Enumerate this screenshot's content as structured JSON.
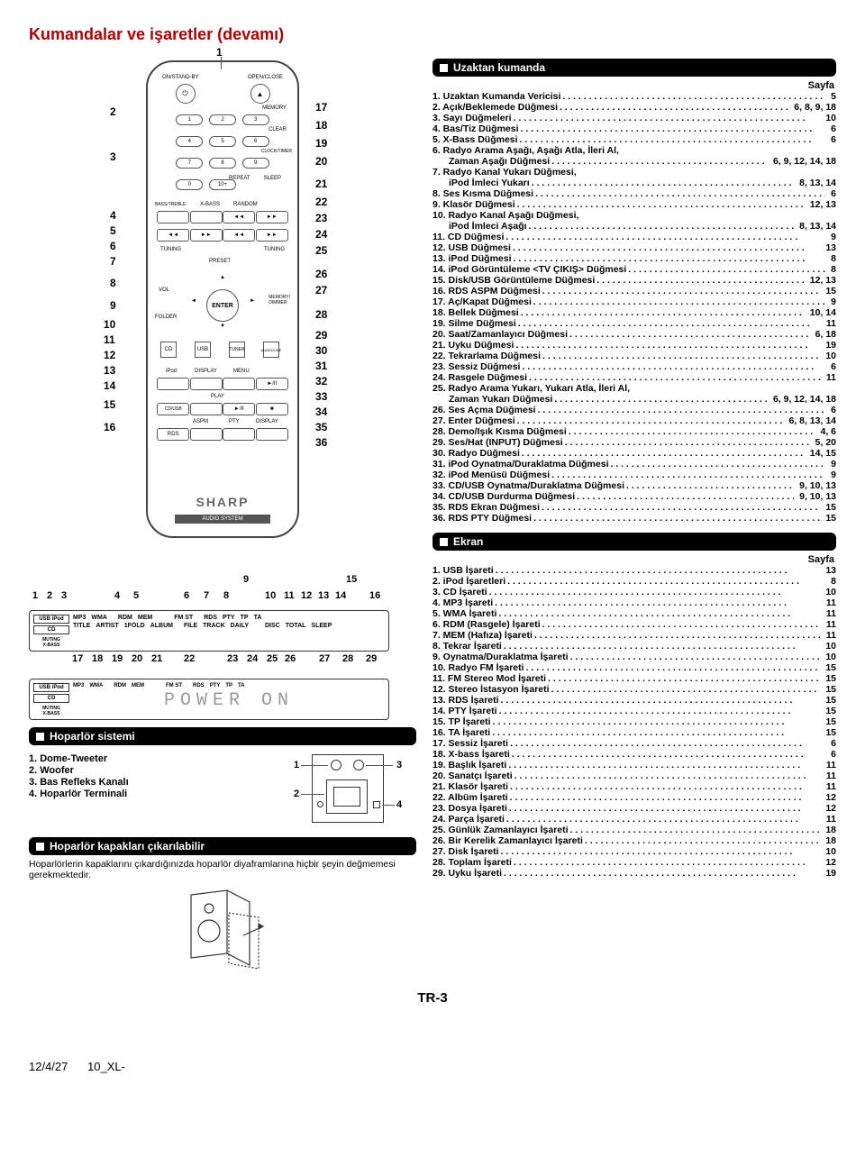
{
  "title": "Kumandalar ve işaretler (devamı)",
  "colors": {
    "title": "#b40000",
    "barBg": "#000000",
    "barFg": "#ffffff",
    "line": "#555555",
    "lcd": "#999999"
  },
  "remote": {
    "topNum": "1",
    "leftNums": [
      "2",
      "3",
      "4",
      "5",
      "6",
      "7",
      "8",
      "9",
      "10",
      "11",
      "12",
      "13",
      "14",
      "15",
      "16"
    ],
    "rightNums": [
      "17",
      "18",
      "19",
      "20",
      "21",
      "22",
      "23",
      "24",
      "25",
      "26",
      "27",
      "28",
      "29",
      "30",
      "31",
      "32",
      "33",
      "34",
      "35",
      "36"
    ],
    "labels": {
      "onStandby": "ON/STAND-BY",
      "openClose": "OPEN/CLOSE",
      "memory": "MEMORY",
      "clear": "CLEAR",
      "clockTimer": "CLOCK/TIMER",
      "repeat": "REPEAT",
      "sleep": "SLEEP",
      "bassTreble": "BASS/TREBLE",
      "xbass": "X-BASS",
      "random": "RANDOM",
      "tuningL": "TUNING",
      "tuningR": "TUNING",
      "preset": "PRESET",
      "vol": "VOL",
      "folder": "FOLDER",
      "enter": "ENTER",
      "memDim": "MEMORY/\nDIMMER",
      "cd": "CD",
      "usb": "USB",
      "tuner": "TUNER",
      "audioLine": "AUDIO/LINE",
      "ipod": "iPod",
      "display": "DISPLAY",
      "menu": "MENU",
      "cdusb": "CD/USB",
      "play": "PLAY",
      "aspm": "ASPM",
      "pty": "PTY",
      "displayB": "DISPLAY",
      "rds": "RDS",
      "brand": "SHARP",
      "audioSystem": "AUDIO SYSTEM",
      "numBtns": [
        "1",
        "2",
        "3",
        "4",
        "5",
        "6",
        "7",
        "8",
        "9",
        "0",
        "10+"
      ],
      "navUp": "▲",
      "navDn": "▼",
      "navL": "◄",
      "navR": "►"
    }
  },
  "displayTop": {
    "topLabels": {
      "n9": "9",
      "n15": "15"
    },
    "rowNums": [
      "1",
      "2",
      "3",
      "4",
      "5",
      "6",
      "7",
      "8",
      "10",
      "11",
      "12",
      "13",
      "14",
      "16"
    ],
    "leftBoxTop": "USB",
    "leftBoxTop2": "iPod",
    "leftBoxMid": "CD",
    "leftBoxBot1": "MUTING",
    "leftBoxBot2": "X-BASS",
    "labelsRow1": [
      "MP3",
      "WMA",
      "",
      "RDM",
      "MEM",
      "",
      "",
      "",
      "FM ST",
      "",
      "RDS",
      "PTY",
      "TP",
      "TA"
    ],
    "labelsRow2": [
      "TITLE",
      "ARTIST",
      "1FOLD",
      "ALBUM",
      "",
      "FILE",
      "TRACK",
      "DAILY",
      "",
      "",
      "DISC",
      "TOTAL",
      "SLEEP"
    ],
    "bottomRowNums": [
      "17",
      "18",
      "19",
      "20",
      "21",
      "22",
      "23",
      "24",
      "25",
      "26",
      "27",
      "28",
      "29"
    ]
  },
  "displayBottom": {
    "leftBoxTop": "USB",
    "leftBoxTop2": "iPod",
    "leftBoxMid": "CD",
    "leftBoxBot1": "MUTING",
    "leftBoxBot2": "X-BASS",
    "labelsRow1": [
      "MP3",
      "WMA",
      "",
      "RDM",
      "MEM",
      "",
      "",
      "",
      "FM ST",
      "",
      "RDS",
      "PTY",
      "TP",
      "TA"
    ],
    "labelsRow2": [
      "TITLE",
      "ARTIST",
      "1FOLD",
      "ALBUM",
      "",
      "FILE",
      "TRACK",
      "DAILY",
      "",
      "",
      "DISC",
      "TOTAL",
      "SLEEP"
    ],
    "lcd": "POWER ON"
  },
  "speakerSection": {
    "title": "Hoparlör sistemi",
    "items": [
      "1. Dome-Tweeter",
      "2. Woofer",
      "3. Bas Refleks Kanalı",
      "4. Hoparlör Terminali"
    ],
    "calloutNums": [
      "1",
      "2",
      "3",
      "4"
    ]
  },
  "coversSection": {
    "title": "Hoparlör kapakları çıkarılabilir",
    "note": "Hoparlörlerin kapaklarını çıkardığınızda hoparlör diyaframlarına hiçbir şeyin değmemesi gerekmektedir."
  },
  "remoteSection": {
    "title": "Uzaktan kumanda",
    "pageLabel": "Sayfa",
    "items": [
      {
        "n": "1.",
        "t": "Uzaktan Kumanda Vericisi",
        "p": "5"
      },
      {
        "n": "2.",
        "t": "Açık/Beklemede Düğmesi",
        "p": "6, 8, 9, 18"
      },
      {
        "n": "3.",
        "t": "Sayı Düğmeleri",
        "p": "10"
      },
      {
        "n": "4.",
        "t": "Bas/Tiz Düğmesi",
        "p": "6"
      },
      {
        "n": "5.",
        "t": "X-Bass Düğmesi",
        "p": "6"
      },
      {
        "n": "6.",
        "t": "Radyo Arama Aşağı, Aşağı Atla, İleri Al,",
        "p": ""
      },
      {
        "n": "",
        "t": "Zaman Aşağı Düğmesi",
        "p": "6, 9, 12, 14, 18",
        "sub": true
      },
      {
        "n": "7.",
        "t": "Radyo Kanal Yukarı Düğmesi,",
        "p": ""
      },
      {
        "n": "",
        "t": "iPod İmleci Yukarı",
        "p": "8, 13, 14",
        "sub": true
      },
      {
        "n": "8.",
        "t": "Ses Kısma Düğmesi",
        "p": "6"
      },
      {
        "n": "9.",
        "t": "Klasör Düğmesi",
        "p": "12, 13"
      },
      {
        "n": "10.",
        "t": "Radyo Kanal Aşağı Düğmesi,",
        "p": ""
      },
      {
        "n": "",
        "t": "iPod İmleci Aşağı",
        "p": "8, 13, 14",
        "sub": true
      },
      {
        "n": "11.",
        "t": "CD Düğmesi",
        "p": "9"
      },
      {
        "n": "12.",
        "t": "USB Düğmesi",
        "p": "13"
      },
      {
        "n": "13.",
        "t": "iPod Düğmesi",
        "p": "8"
      },
      {
        "n": "14.",
        "t": "iPod Görüntüleme <TV ÇIKIŞ> Düğmesi",
        "p": "8"
      },
      {
        "n": "15.",
        "t": "Disk/USB Görüntüleme Düğmesi",
        "p": "12, 13"
      },
      {
        "n": "16.",
        "t": "RDS ASPM Düğmesi",
        "p": "15"
      },
      {
        "n": "17.",
        "t": "Aç/Kapat Düğmesi",
        "p": "9"
      },
      {
        "n": "18.",
        "t": "Bellek Düğmesi",
        "p": "10, 14"
      },
      {
        "n": "19.",
        "t": "Silme Düğmesi",
        "p": "11"
      },
      {
        "n": "20.",
        "t": "Saat/Zamanlayıcı Düğmesi",
        "p": "6, 18"
      },
      {
        "n": "21.",
        "t": "Uyku Düğmesi",
        "p": "19"
      },
      {
        "n": "22.",
        "t": "Tekrarlama Düğmesi",
        "p": "10"
      },
      {
        "n": "23.",
        "t": "Sessiz Düğmesi",
        "p": "6"
      },
      {
        "n": "24.",
        "t": "Rasgele Düğmesi",
        "p": "11"
      },
      {
        "n": "25.",
        "t": "Radyo Arama Yukarı, Yukarı Atla, İleri Al,",
        "p": ""
      },
      {
        "n": "",
        "t": "Zaman Yukarı Düğmesi",
        "p": "6, 9, 12, 14, 18",
        "sub": true
      },
      {
        "n": "26.",
        "t": "Ses Açma Düğmesi",
        "p": "6"
      },
      {
        "n": "27.",
        "t": "Enter Düğmesi",
        "p": "6, 8, 13, 14"
      },
      {
        "n": "28.",
        "t": "Demo/Işık Kısma Düğmesi",
        "p": "4, 6"
      },
      {
        "n": "29.",
        "t": "Ses/Hat (INPUT) Düğmesi",
        "p": "5, 20"
      },
      {
        "n": "30.",
        "t": "Radyo Düğmesi",
        "p": "14, 15"
      },
      {
        "n": "31.",
        "t": "iPod Oynatma/Duraklatma Düğmesi",
        "p": "9"
      },
      {
        "n": "32.",
        "t": "iPod Menüsü Düğmesi",
        "p": "9"
      },
      {
        "n": "33.",
        "t": "CD/USB Oynatma/Duraklatma Düğmesi",
        "p": "9, 10, 13"
      },
      {
        "n": "34.",
        "t": "CD/USB Durdurma Düğmesi",
        "p": "9, 10, 13"
      },
      {
        "n": "35.",
        "t": "RDS Ekran Düğmesi",
        "p": "15"
      },
      {
        "n": "36.",
        "t": "RDS PTY Düğmesi",
        "p": "15"
      }
    ]
  },
  "ekranSection": {
    "title": "Ekran",
    "pageLabel": "Sayfa",
    "items": [
      {
        "n": "1.",
        "t": "USB İşareti",
        "p": "13"
      },
      {
        "n": "2.",
        "t": "iPod İşaretleri",
        "p": "8"
      },
      {
        "n": "3.",
        "t": "CD İşareti",
        "p": "10"
      },
      {
        "n": "4.",
        "t": "MP3 İşareti",
        "p": "11"
      },
      {
        "n": "5.",
        "t": "WMA İşareti",
        "p": "11"
      },
      {
        "n": "6.",
        "t": "RDM (Rasgele) İşareti",
        "p": "11"
      },
      {
        "n": "7.",
        "t": "MEM (Hafıza) İşareti",
        "p": "11"
      },
      {
        "n": "8.",
        "t": "Tekrar İşareti",
        "p": "10"
      },
      {
        "n": "9.",
        "t": "Oynatma/Duraklatma İşareti",
        "p": "10"
      },
      {
        "n": "10.",
        "t": "Radyo FM İşareti",
        "p": "15"
      },
      {
        "n": "11.",
        "t": "FM Stereo Mod İşareti",
        "p": "15"
      },
      {
        "n": "12.",
        "t": "Stereo İstasyon İşareti",
        "p": "15"
      },
      {
        "n": "13.",
        "t": "RDS İşareti",
        "p": "15"
      },
      {
        "n": "14.",
        "t": "PTY İşareti",
        "p": "15"
      },
      {
        "n": "15.",
        "t": "TP İşareti",
        "p": "15"
      },
      {
        "n": "16.",
        "t": "TA İşareti",
        "p": "15"
      },
      {
        "n": "17.",
        "t": "Sessiz İşareti",
        "p": "6"
      },
      {
        "n": "18.",
        "t": "X-bass İşareti",
        "p": "6"
      },
      {
        "n": "19.",
        "t": "Başlık İşareti",
        "p": "11"
      },
      {
        "n": "20.",
        "t": "Sanatçı İşareti",
        "p": "11"
      },
      {
        "n": "21.",
        "t": "Klasör İşareti",
        "p": "11"
      },
      {
        "n": "22.",
        "t": "Albüm İşareti",
        "p": "12"
      },
      {
        "n": "23.",
        "t": "Dosya İşareti",
        "p": "12"
      },
      {
        "n": "24.",
        "t": "Parça İşareti",
        "p": "11"
      },
      {
        "n": "25.",
        "t": "Günlük Zamanlayıcı İşareti",
        "p": "18"
      },
      {
        "n": "26.",
        "t": "Bir Kerelik Zamanlayıcı İşareti",
        "p": "18"
      },
      {
        "n": "27.",
        "t": "Disk İşareti",
        "p": "10"
      },
      {
        "n": "28.",
        "t": "Toplam İşareti",
        "p": "12"
      },
      {
        "n": "29.",
        "t": "Uyku İşareti",
        "p": "19"
      }
    ]
  },
  "pageNumber": "TR-3",
  "footer": {
    "date": "12/4/27",
    "doc": "10_XL-"
  }
}
